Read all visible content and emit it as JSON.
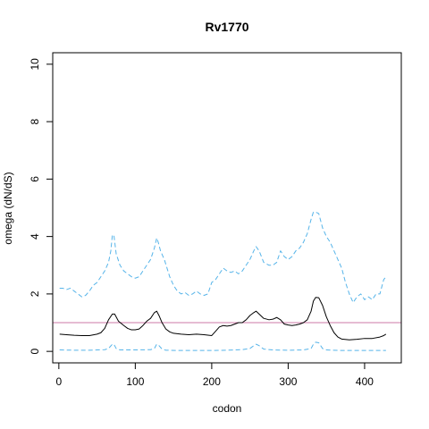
{
  "chart_data": {
    "type": "line",
    "title": "Rv1770",
    "xlabel": "codon",
    "ylabel": "omega (dN/dS)",
    "xlim": [
      -8,
      448
    ],
    "ylim": [
      -0.4,
      10.4
    ],
    "xticks": [
      0,
      100,
      200,
      300,
      400
    ],
    "yticks": [
      0,
      2,
      4,
      6,
      8,
      10
    ],
    "grid": false,
    "reference_line": {
      "y": 1,
      "color": "#cc79a7"
    },
    "series": [
      {
        "role": "upper-bound",
        "color": "#56b4e9",
        "dash": "dashed",
        "x": [
          1,
          5,
          10,
          15,
          20,
          25,
          30,
          35,
          40,
          45,
          50,
          55,
          60,
          65,
          68,
          70,
          72,
          75,
          80,
          85,
          90,
          95,
          100,
          105,
          110,
          115,
          120,
          125,
          128,
          130,
          133,
          138,
          145,
          150,
          155,
          160,
          165,
          170,
          175,
          180,
          185,
          190,
          195,
          200,
          205,
          210,
          215,
          220,
          225,
          230,
          235,
          240,
          245,
          250,
          255,
          258,
          262,
          268,
          275,
          280,
          285,
          290,
          295,
          300,
          305,
          310,
          315,
          320,
          325,
          330,
          333,
          336,
          340,
          345,
          350,
          355,
          360,
          365,
          370,
          375,
          380,
          385,
          390,
          395,
          400,
          405,
          410,
          415,
          420,
          425,
          428
        ],
        "y": [
          2.2,
          2.2,
          2.15,
          2.2,
          2.1,
          2.0,
          1.9,
          1.95,
          2.1,
          2.3,
          2.4,
          2.6,
          2.8,
          3.1,
          3.5,
          4.05,
          4.05,
          3.4,
          3.0,
          2.8,
          2.7,
          2.6,
          2.55,
          2.6,
          2.8,
          3.0,
          3.2,
          3.6,
          3.95,
          3.8,
          3.5,
          3.2,
          2.6,
          2.3,
          2.1,
          2.0,
          2.05,
          1.95,
          2.0,
          2.1,
          2.0,
          1.95,
          2.0,
          2.4,
          2.5,
          2.7,
          2.9,
          2.8,
          2.75,
          2.8,
          2.7,
          2.8,
          3.0,
          3.2,
          3.5,
          3.65,
          3.5,
          3.1,
          3.0,
          3.0,
          3.1,
          3.5,
          3.3,
          3.2,
          3.3,
          3.5,
          3.6,
          3.8,
          4.1,
          4.6,
          4.85,
          4.85,
          4.8,
          4.3,
          4.0,
          3.8,
          3.5,
          3.2,
          2.9,
          2.4,
          2.0,
          1.7,
          1.9,
          2.0,
          1.8,
          1.9,
          1.8,
          2.0,
          2.0,
          2.5,
          2.6
        ]
      },
      {
        "role": "estimate",
        "color": "#000000",
        "dash": "solid",
        "x": [
          1,
          10,
          20,
          30,
          40,
          50,
          55,
          60,
          65,
          70,
          73,
          78,
          85,
          90,
          95,
          100,
          105,
          110,
          115,
          120,
          125,
          128,
          131,
          135,
          140,
          145,
          150,
          160,
          170,
          180,
          190,
          200,
          205,
          210,
          215,
          220,
          225,
          230,
          235,
          240,
          245,
          250,
          255,
          258,
          262,
          268,
          275,
          280,
          285,
          290,
          295,
          300,
          305,
          310,
          315,
          320,
          325,
          330,
          333,
          336,
          340,
          345,
          350,
          355,
          360,
          365,
          370,
          380,
          390,
          400,
          410,
          420,
          425,
          428
        ],
        "y": [
          0.6,
          0.58,
          0.56,
          0.55,
          0.55,
          0.6,
          0.65,
          0.8,
          1.1,
          1.3,
          1.3,
          1.05,
          0.9,
          0.8,
          0.75,
          0.75,
          0.78,
          0.9,
          1.05,
          1.15,
          1.35,
          1.4,
          1.25,
          1.0,
          0.78,
          0.68,
          0.63,
          0.6,
          0.58,
          0.6,
          0.58,
          0.55,
          0.7,
          0.85,
          0.9,
          0.88,
          0.9,
          0.95,
          1.0,
          1.0,
          1.1,
          1.25,
          1.35,
          1.4,
          1.3,
          1.15,
          1.1,
          1.12,
          1.18,
          1.1,
          0.95,
          0.92,
          0.9,
          0.92,
          0.95,
          1.0,
          1.1,
          1.4,
          1.75,
          1.88,
          1.87,
          1.6,
          1.2,
          0.9,
          0.65,
          0.5,
          0.43,
          0.4,
          0.42,
          0.45,
          0.45,
          0.5,
          0.55,
          0.6
        ]
      },
      {
        "role": "lower-bound",
        "color": "#56b4e9",
        "dash": "dashed",
        "x": [
          1,
          20,
          40,
          60,
          65,
          70,
          72,
          75,
          80,
          100,
          120,
          125,
          128,
          131,
          135,
          140,
          160,
          180,
          200,
          220,
          240,
          250,
          255,
          258,
          262,
          268,
          280,
          300,
          320,
          330,
          333,
          336,
          340,
          345,
          350,
          370,
          400,
          428
        ],
        "y": [
          0.05,
          0.04,
          0.04,
          0.06,
          0.1,
          0.25,
          0.25,
          0.1,
          0.05,
          0.05,
          0.06,
          0.1,
          0.25,
          0.2,
          0.08,
          0.04,
          0.03,
          0.03,
          0.03,
          0.04,
          0.06,
          0.1,
          0.2,
          0.25,
          0.2,
          0.08,
          0.05,
          0.04,
          0.05,
          0.1,
          0.25,
          0.32,
          0.3,
          0.1,
          0.05,
          0.03,
          0.03,
          0.03
        ]
      }
    ]
  }
}
